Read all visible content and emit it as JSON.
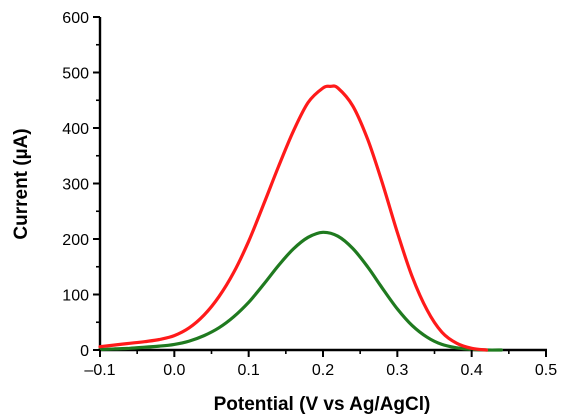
{
  "chart_data": {
    "type": "line",
    "title": "",
    "xlabel": "Potential (V vs Ag/AgCl)",
    "ylabel": "Current (µA)",
    "xlim": [
      -0.1,
      0.5
    ],
    "ylim": [
      0,
      600
    ],
    "x_ticks": [
      -0.1,
      0.0,
      0.1,
      0.2,
      0.3,
      0.4,
      0.5
    ],
    "x_tick_labels": [
      "–0.1",
      "0.0",
      "0.1",
      "0.2",
      "0.3",
      "0.4",
      "0.5"
    ],
    "y_ticks": [
      0,
      100,
      200,
      300,
      400,
      500,
      600
    ],
    "y_tick_labels": [
      "0",
      "100",
      "200",
      "300",
      "400",
      "500",
      "600"
    ],
    "grid": false,
    "legend": "none",
    "series": [
      {
        "color": "#ff1a1a",
        "x": [
          -0.1,
          -0.08,
          -0.06,
          -0.04,
          -0.02,
          0.0,
          0.02,
          0.04,
          0.06,
          0.08,
          0.1,
          0.12,
          0.14,
          0.16,
          0.18,
          0.2,
          0.21,
          0.22,
          0.24,
          0.26,
          0.28,
          0.3,
          0.32,
          0.34,
          0.36,
          0.38,
          0.4,
          0.42
        ],
        "y": [
          6,
          9,
          12,
          15,
          19,
          26,
          40,
          63,
          96,
          140,
          196,
          262,
          330,
          394,
          446,
          472,
          475,
          472,
          440,
          380,
          300,
          212,
          132,
          72,
          32,
          12,
          3,
          0
        ]
      },
      {
        "color": "#1f7a1f",
        "x": [
          -0.1,
          -0.08,
          -0.06,
          -0.04,
          -0.02,
          0.0,
          0.02,
          0.04,
          0.06,
          0.08,
          0.1,
          0.12,
          0.14,
          0.16,
          0.18,
          0.2,
          0.22,
          0.24,
          0.26,
          0.28,
          0.3,
          0.32,
          0.34,
          0.36,
          0.38,
          0.4,
          0.42,
          0.44
        ],
        "y": [
          1,
          2,
          3,
          5,
          7,
          10,
          16,
          26,
          40,
          60,
          86,
          118,
          152,
          182,
          203,
          212,
          205,
          183,
          150,
          111,
          74,
          44,
          23,
          10,
          4,
          1,
          0,
          0
        ]
      }
    ]
  }
}
